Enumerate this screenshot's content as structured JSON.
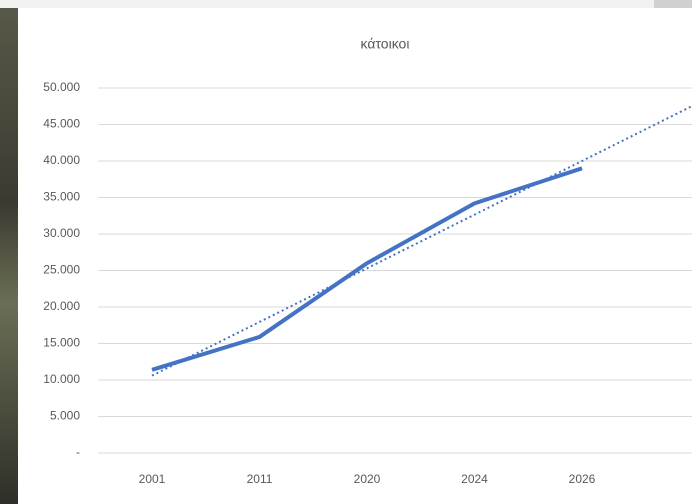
{
  "chart_data": {
    "type": "line",
    "title": "κάτοικοι",
    "categories": [
      "2001",
      "2011",
      "2020",
      "2024",
      "2026"
    ],
    "values": [
      11400,
      15900,
      26000,
      34200,
      39000
    ],
    "color": "#4472c4",
    "trendline": "linear",
    "ylim": [
      0,
      50000
    ],
    "yticks": [
      {
        "value": 0,
        "label": "-"
      },
      {
        "value": 5000,
        "label": "5.000"
      },
      {
        "value": 10000,
        "label": "10.000"
      },
      {
        "value": 15000,
        "label": "15.000"
      },
      {
        "value": 20000,
        "label": "20.000"
      },
      {
        "value": 25000,
        "label": "25.000"
      },
      {
        "value": 30000,
        "label": "30.000"
      },
      {
        "value": 35000,
        "label": "35.000"
      },
      {
        "value": 40000,
        "label": "40.000"
      },
      {
        "value": 45000,
        "label": "45.000"
      },
      {
        "value": 50000,
        "label": "50.000"
      }
    ],
    "grid": true
  }
}
